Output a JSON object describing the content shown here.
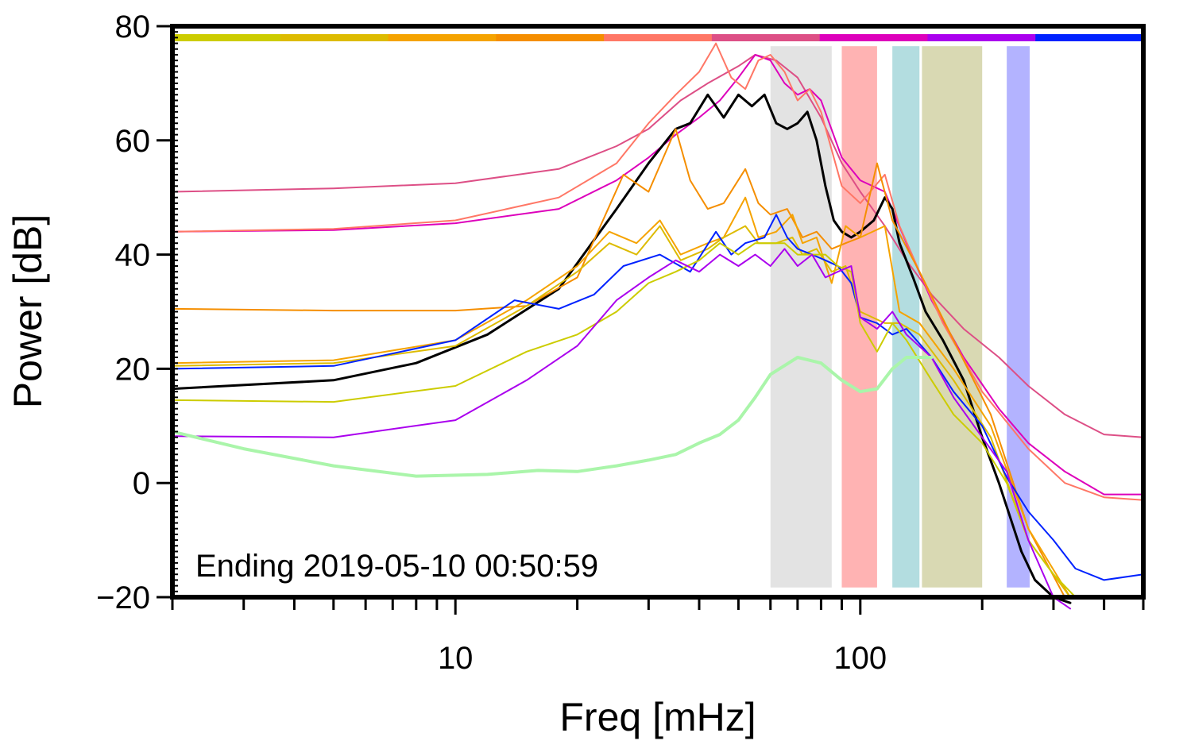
{
  "chart_data": {
    "type": "line",
    "title": "",
    "xlabel": "Freq [mHz]",
    "ylabel": "Power [dB]",
    "xscale": "log",
    "xlim": [
      2,
      500
    ],
    "ylim": [
      -20,
      80
    ],
    "grid": false,
    "annotation": "Ending 2019-05-10 00:50:59",
    "x_ticks": [
      {
        "value": 10,
        "label": "10"
      },
      {
        "value": 100,
        "label": "100"
      }
    ],
    "y_ticks": [
      {
        "value": -20,
        "label": "−20"
      },
      {
        "value": 0,
        "label": "0"
      },
      {
        "value": 20,
        "label": "20"
      },
      {
        "value": 40,
        "label": "40"
      },
      {
        "value": 60,
        "label": "60"
      },
      {
        "value": 80,
        "label": "80"
      }
    ],
    "bands": [
      {
        "from": 60,
        "to": 85,
        "color": "#e3e3e3"
      },
      {
        "from": 90,
        "to": 110,
        "color": "#ffb3b3"
      },
      {
        "from": 120,
        "to": 140,
        "color": "#b3dde0"
      },
      {
        "from": 142,
        "to": 200,
        "color": "#d9d9b3"
      },
      {
        "from": 230,
        "to": 262,
        "color": "#b3b3ff"
      }
    ],
    "color_bar": [
      "#cccc00",
      "#ddbb00",
      "#f5a300",
      "#f58e00",
      "#ff7766",
      "#dd4f86",
      "#dd00bb",
      "#aa00ee",
      "#0022ff"
    ],
    "series": [
      {
        "name": "pink",
        "color": "#dd4f86",
        "width": 2,
        "x": [
          2,
          5,
          10,
          18,
          25,
          30,
          36,
          42,
          50,
          55,
          62,
          70,
          80,
          90,
          100,
          115,
          130,
          150,
          180,
          220,
          260,
          320,
          400,
          500
        ],
        "y": [
          51,
          51.6,
          52.5,
          55,
          59,
          62,
          67,
          70,
          73,
          75,
          74,
          71,
          64,
          56,
          51,
          45,
          39,
          33,
          27,
          22,
          17,
          12,
          8.5,
          8
        ]
      },
      {
        "name": "magenta",
        "color": "#dd00bb",
        "width": 2,
        "x": [
          2,
          5,
          10,
          18,
          25,
          30,
          35,
          40,
          45,
          50,
          55,
          60,
          65,
          70,
          75,
          80,
          90,
          100,
          115,
          130,
          150,
          180,
          220,
          260,
          320,
          400,
          500
        ],
        "y": [
          44,
          44.3,
          45.5,
          48,
          53,
          57,
          61,
          64,
          67,
          71,
          75,
          74,
          70,
          68,
          69,
          67,
          57,
          53,
          51,
          42,
          32,
          22,
          13,
          7,
          2,
          -2,
          -2
        ]
      },
      {
        "name": "salmon",
        "color": "#ff7766",
        "width": 2,
        "x": [
          2,
          5,
          10,
          18,
          25,
          30,
          35,
          40,
          44,
          48,
          52,
          56,
          60,
          65,
          70,
          75,
          80,
          90,
          100,
          115,
          125,
          140,
          160,
          200,
          260,
          320,
          400,
          500
        ],
        "y": [
          44,
          44.5,
          46,
          50,
          56,
          63,
          68,
          72,
          77,
          71,
          69,
          74,
          75,
          72,
          67,
          69,
          65,
          52,
          49,
          54,
          45,
          37,
          28,
          16,
          6,
          0,
          -2.5,
          -3
        ]
      },
      {
        "name": "black",
        "color": "#000000",
        "width": 3,
        "x": [
          2,
          5,
          8,
          12,
          18,
          25,
          30,
          35,
          38,
          42,
          46,
          50,
          54,
          58,
          62,
          66,
          70,
          74,
          78,
          82,
          86,
          90,
          95,
          100,
          108,
          115,
          120,
          125,
          135,
          145,
          160,
          180,
          200,
          220,
          250,
          270,
          300,
          330
        ],
        "y": [
          16.5,
          18,
          21,
          26,
          34,
          48,
          56,
          62,
          63,
          68,
          64,
          68,
          66,
          68,
          63,
          62,
          63,
          65,
          60,
          52,
          46,
          44,
          43,
          44,
          46,
          50,
          48,
          42,
          36,
          30,
          25,
          18,
          8,
          0,
          -12,
          -17,
          -20,
          -21
        ]
      },
      {
        "name": "orange-1",
        "color": "#f58e00",
        "width": 2,
        "x": [
          2,
          5,
          10,
          15,
          20,
          26,
          30,
          35,
          38,
          42,
          46,
          52,
          56,
          60,
          66,
          72,
          78,
          85,
          92,
          100,
          110,
          120,
          140,
          170,
          210,
          260,
          320
        ],
        "y": [
          30.5,
          30.2,
          30.2,
          31,
          36,
          54,
          51,
          62,
          53,
          48,
          49,
          55,
          49,
          47,
          48,
          43,
          44,
          41,
          42,
          43,
          56,
          46,
          37,
          25,
          12,
          -8,
          -20
        ]
      },
      {
        "name": "orange-2",
        "color": "#f5a300",
        "width": 2,
        "x": [
          2,
          5,
          10,
          15,
          20,
          24,
          28,
          32,
          36,
          42,
          46,
          52,
          56,
          62,
          68,
          72,
          78,
          85,
          92,
          100,
          115,
          125,
          140,
          170,
          210,
          260,
          330
        ],
        "y": [
          21,
          21.5,
          25,
          32,
          38,
          44,
          42,
          46,
          40,
          42,
          43,
          50,
          43,
          44,
          47,
          42,
          43,
          35,
          45,
          43,
          45,
          30,
          28,
          20,
          10,
          -8,
          -20
        ]
      },
      {
        "name": "orange-3",
        "color": "#ddbb00",
        "width": 2,
        "x": [
          2,
          5,
          10,
          15,
          20,
          24,
          28,
          32,
          36,
          42,
          46,
          52,
          56,
          62,
          68,
          72,
          78,
          85,
          92,
          100,
          115,
          125,
          140,
          170,
          210,
          260,
          330
        ],
        "y": [
          20.5,
          21,
          24,
          31,
          37,
          42,
          40,
          45,
          39,
          41,
          43,
          45,
          42,
          42,
          43,
          40,
          41,
          37,
          38,
          30,
          28,
          28,
          26,
          18,
          8,
          -10,
          -20
        ]
      },
      {
        "name": "blue",
        "color": "#0022ff",
        "width": 2,
        "x": [
          2,
          5,
          10,
          14,
          18,
          22,
          26,
          32,
          38,
          44,
          48,
          52,
          58,
          62,
          66,
          70,
          76,
          82,
          88,
          95,
          100,
          110,
          120,
          130,
          150,
          170,
          200,
          230,
          260,
          300,
          340,
          400,
          500
        ],
        "y": [
          20,
          20.5,
          25,
          32,
          30.5,
          33,
          38,
          40,
          37,
          44,
          40,
          42,
          43,
          47,
          43,
          41,
          40,
          39,
          38,
          35,
          29,
          28,
          26,
          27,
          22,
          16,
          10,
          1,
          -5,
          -10,
          -15,
          -17,
          -16
        ]
      },
      {
        "name": "yellow-green",
        "color": "#cccc00",
        "width": 2,
        "x": [
          2,
          5,
          10,
          15,
          20,
          25,
          30,
          35,
          40,
          45,
          50,
          55,
          60,
          65,
          70,
          76,
          82,
          88,
          95,
          100,
          110,
          120,
          130,
          150,
          170,
          200,
          230,
          260,
          300,
          340
        ],
        "y": [
          14.5,
          14.2,
          17,
          23,
          26,
          30,
          35,
          37,
          39,
          42,
          40,
          42,
          42,
          42,
          40,
          40,
          40,
          38,
          37,
          28,
          23,
          28,
          25,
          18,
          12,
          7,
          0,
          -10,
          -16,
          -20
        ]
      },
      {
        "name": "purple",
        "color": "#aa00ee",
        "width": 2,
        "x": [
          2,
          5,
          10,
          15,
          20,
          25,
          30,
          35,
          40,
          45,
          50,
          55,
          60,
          65,
          70,
          76,
          82,
          88,
          95,
          100,
          110,
          120,
          130,
          150,
          170,
          200,
          230,
          260,
          300,
          330
        ],
        "y": [
          8.2,
          8,
          11,
          18,
          24,
          32,
          36,
          39,
          37,
          40,
          38,
          40,
          38,
          41,
          38,
          40,
          36,
          37,
          38,
          29,
          27,
          30,
          26,
          22,
          15,
          8,
          2,
          -10,
          -20,
          -22
        ]
      },
      {
        "name": "light-green",
        "color": "#aaf5aa",
        "width": 4,
        "x": [
          2,
          3,
          5,
          8,
          12,
          16,
          20,
          25,
          30,
          35,
          40,
          45,
          50,
          55,
          60,
          70,
          80,
          90,
          100,
          110,
          120,
          130,
          140,
          150
        ],
        "y": [
          9,
          6,
          3,
          1.2,
          1.5,
          2.2,
          2,
          3,
          4,
          5,
          7,
          8.5,
          11,
          15,
          19,
          22,
          21,
          18,
          16,
          16.5,
          20,
          22,
          22,
          22
        ]
      }
    ]
  }
}
